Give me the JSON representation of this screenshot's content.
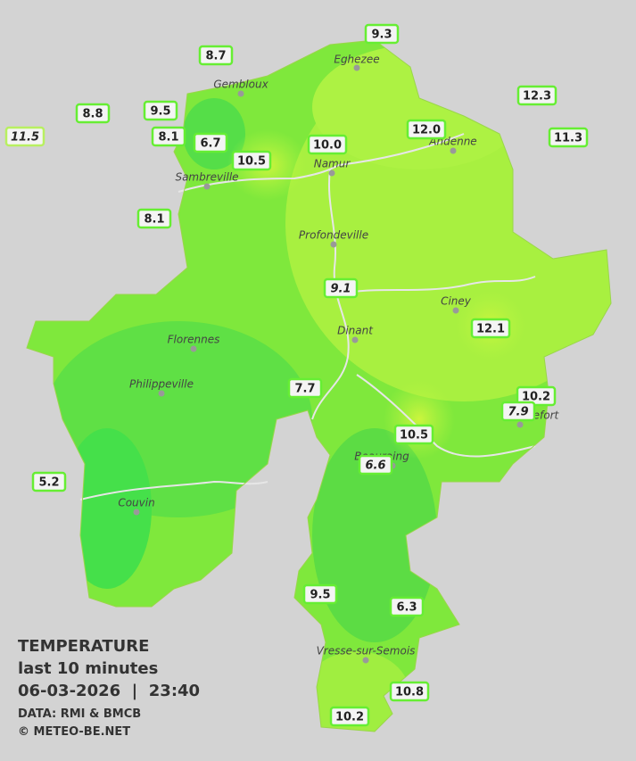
{
  "map": {
    "stations": [
      {
        "value": "9.3"
      },
      {
        "value": "8.7"
      },
      {
        "value": "12.3"
      },
      {
        "value": "8.8"
      },
      {
        "value": "9.5"
      },
      {
        "value": "11.5",
        "italic": true
      },
      {
        "value": "8.1"
      },
      {
        "value": "6.7"
      },
      {
        "value": "10.0"
      },
      {
        "value": "12.0"
      },
      {
        "value": "11.3"
      },
      {
        "value": "10.5"
      },
      {
        "value": "8.1"
      },
      {
        "value": "9.1",
        "italic": true
      },
      {
        "value": "12.1"
      },
      {
        "value": "7.7"
      },
      {
        "value": "10.2"
      },
      {
        "value": "7.9",
        "italic": true
      },
      {
        "value": "10.5"
      },
      {
        "value": "6.6",
        "italic": true
      },
      {
        "value": "5.2"
      },
      {
        "value": "9.5"
      },
      {
        "value": "6.3"
      },
      {
        "value": "10.8"
      },
      {
        "value": "10.2"
      }
    ],
    "cities": [
      "Eghezee",
      "Gembloux",
      "Andenne",
      "Namur",
      "Sambreville",
      "Profondeville",
      "Ciney",
      "Dinant",
      "Florennes",
      "Philippeville",
      "Rochefort",
      "Beauraing",
      "Couvin",
      "Vresse-sur-Semois"
    ],
    "legend": {
      "title": "TEMPERATURE",
      "subtitle": "last 10 minutes",
      "datetime": "06-03-2026  |  23:40",
      "source": "DATA: RMI & BMCB",
      "copyright": "© METEO-BE.NET"
    }
  }
}
